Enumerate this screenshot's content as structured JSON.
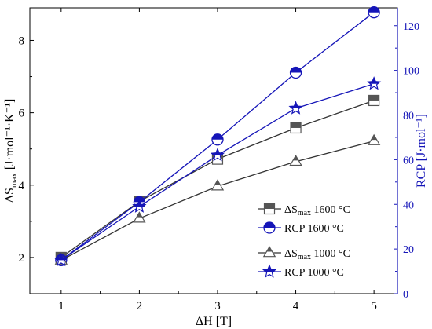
{
  "chart_data": {
    "type": "line",
    "x": [
      1,
      2,
      3,
      4,
      5
    ],
    "xlabel": "ΔH [T]",
    "xlim": [
      0.6,
      5.3
    ],
    "xticks": [
      "1",
      "2",
      "3",
      "4",
      "5"
    ],
    "ylabel_left_main": "ΔS",
    "ylabel_left_sub": "max",
    "ylabel_left_unit": " [J·mol⁻¹·K⁻¹]",
    "ylim_left": [
      1.0,
      8.9
    ],
    "yticks_left": [
      "2",
      "4",
      "6",
      "8"
    ],
    "ylabel_right": "RCP [J·mol⁻¹]",
    "ylim_right": [
      0,
      128
    ],
    "yticks_right": [
      "0",
      "20",
      "40",
      "60",
      "80",
      "100",
      "120"
    ],
    "legend_position": "center-right",
    "series": [
      {
        "name_main": "ΔS",
        "name_sub": "max",
        "name_rest": " 1600 °C",
        "axis": "left",
        "values": [
          2.0,
          3.55,
          4.72,
          5.58,
          6.34
        ],
        "marker": "square-half",
        "color": "#555555",
        "line_color": "#333333"
      },
      {
        "name_main": "RCP",
        "name_sub": "",
        "name_rest": " 1600 °C",
        "axis": "right",
        "values": [
          15,
          41,
          69,
          99,
          126
        ],
        "marker": "circle-half",
        "color": "#1515b8",
        "line_color": "#1515b8"
      },
      {
        "name_main": "ΔS",
        "name_sub": "max",
        "name_rest": " 1000 °C",
        "axis": "left",
        "values": [
          1.92,
          3.08,
          3.97,
          4.65,
          5.22
        ],
        "marker": "triangle-half",
        "color": "#555555",
        "line_color": "#333333"
      },
      {
        "name_main": "RCP",
        "name_sub": "",
        "name_rest": " 1000 °C",
        "axis": "right",
        "values": [
          15,
          39,
          62,
          83,
          94
        ],
        "marker": "star-half",
        "color": "#1515b8",
        "line_color": "#1515b8"
      }
    ]
  }
}
